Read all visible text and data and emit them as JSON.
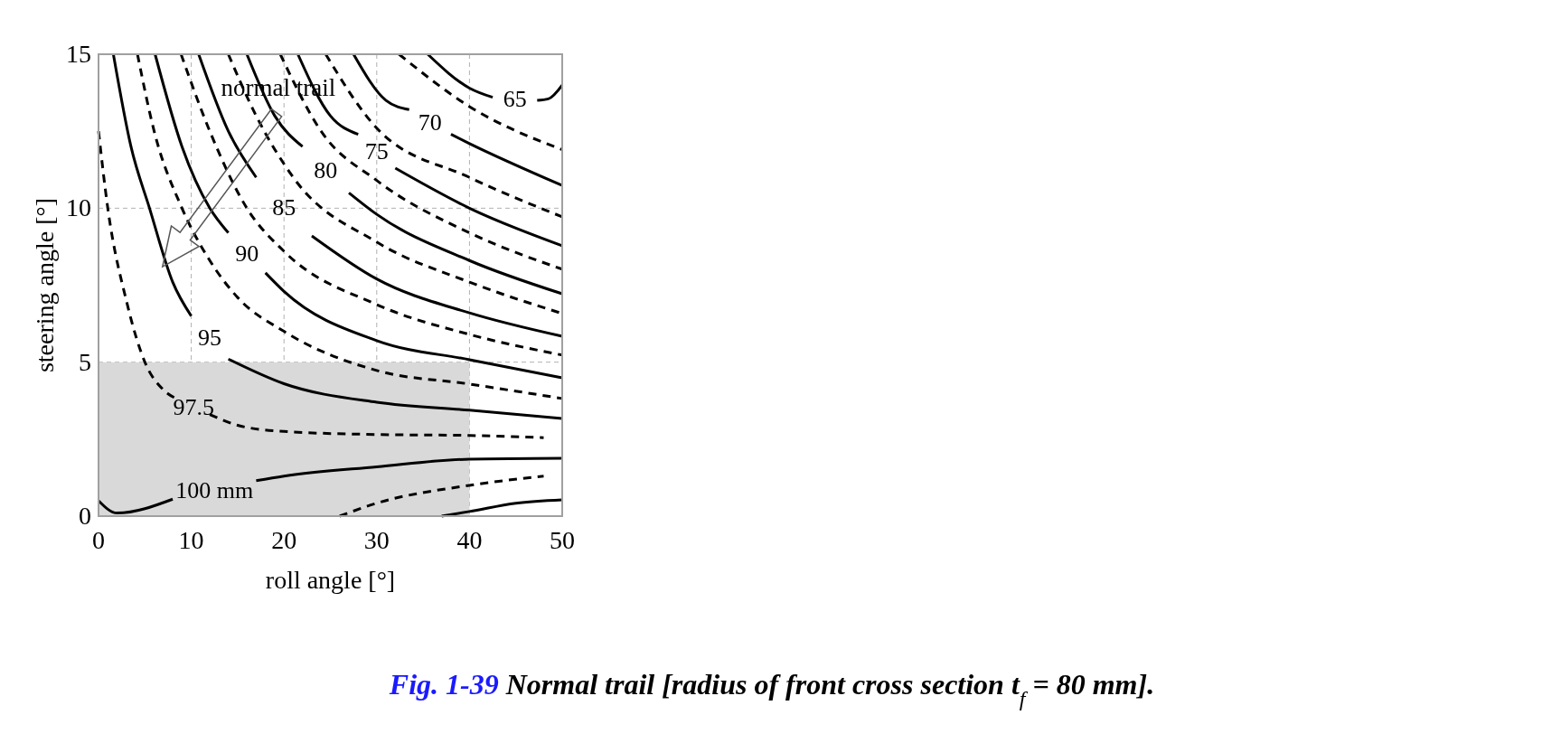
{
  "chart_data": {
    "type": "line",
    "xlabel": "roll angle [°]",
    "ylabel": "steering angle [°]",
    "xlim": [
      0,
      50
    ],
    "ylim": [
      0,
      15
    ],
    "xticks": [
      0,
      10,
      20,
      30,
      40,
      50
    ],
    "yticks": [
      0,
      5,
      10,
      15
    ],
    "grid": true,
    "series": [
      {
        "type": "area",
        "color": "#d9d9d9",
        "x": [
          0,
          40
        ],
        "values": [
          5,
          5
        ]
      },
      {
        "name": "100 mm",
        "color": "#000000",
        "line_style": "solid",
        "x": [
          0,
          2,
          8,
          12,
          17,
          20,
          30,
          40,
          50
        ],
        "values": [
          0.5,
          0.1,
          0.55,
          null,
          1.15,
          1.3,
          1.6,
          1.85,
          1.88
        ]
      },
      {
        "color": "#000000",
        "line_style": "dashed",
        "x": [
          26,
          30,
          40,
          48
        ],
        "values": [
          0,
          0.42,
          1.0,
          1.3
        ]
      },
      {
        "color": "#000000",
        "line_style": "solid",
        "x": [
          37,
          40,
          45,
          50
        ],
        "values": [
          0,
          0.15,
          0.42,
          0.53
        ]
      },
      {
        "name": "97.5",
        "color": "#000000",
        "line_style": "dashed",
        "x": [
          0,
          1,
          3,
          5,
          7,
          8.5,
          10.6,
          12,
          15,
          20,
          30,
          40,
          48
        ],
        "values": [
          12.5,
          10,
          7,
          5,
          4.1,
          3.8,
          null,
          3.3,
          2.95,
          2.75,
          2.65,
          2.62,
          2.55
        ]
      },
      {
        "name": "95",
        "color": "#000000",
        "line_style": "solid",
        "x": [
          1.6,
          3.5,
          5.5,
          8,
          10,
          12.5,
          14,
          20,
          30,
          40,
          50
        ],
        "values": [
          15,
          12,
          10,
          7.6,
          6.5,
          null,
          5.1,
          4.3,
          3.7,
          3.44,
          3.17
        ]
      },
      {
        "color": "#000000",
        "line_style": "dashed",
        "x": [
          4.2,
          6,
          9,
          12,
          15,
          20,
          30,
          40,
          50
        ],
        "values": [
          15,
          12.5,
          10,
          8.3,
          7.1,
          6,
          4.73,
          4.29,
          3.82
        ]
      },
      {
        "name": "90",
        "color": "#000000",
        "line_style": "solid",
        "x": [
          6.1,
          9,
          12,
          14,
          16,
          18,
          20,
          30,
          40,
          50
        ],
        "values": [
          15,
          12,
          10,
          9.2,
          null,
          7.9,
          7.3,
          5.7,
          5.08,
          4.49
        ]
      },
      {
        "color": "#000000",
        "line_style": "dashed",
        "x": [
          8.9,
          12,
          16,
          20,
          30,
          40,
          50
        ],
        "values": [
          15,
          12.5,
          10,
          8.6,
          6.87,
          5.9,
          5.23
        ]
      },
      {
        "name": "85",
        "color": "#000000",
        "line_style": "solid",
        "x": [
          10.8,
          14,
          17,
          20,
          23,
          30,
          40,
          50
        ],
        "values": [
          15,
          12.5,
          11,
          null,
          9.1,
          7.7,
          6.6,
          5.84
        ]
      },
      {
        "color": "#000000",
        "line_style": "dashed",
        "x": [
          14,
          17,
          21,
          30,
          40,
          50
        ],
        "values": [
          15,
          13,
          11,
          8.9,
          7.6,
          6.58
        ]
      },
      {
        "name": "80",
        "color": "#000000",
        "line_style": "solid",
        "x": [
          16,
          19,
          22,
          24.7,
          27,
          30,
          40,
          50
        ],
        "values": [
          15,
          13,
          12,
          null,
          10.5,
          9.8,
          8.3,
          7.22
        ]
      },
      {
        "color": "#000000",
        "line_style": "dashed",
        "x": [
          19.6,
          24,
          30,
          40,
          50
        ],
        "values": [
          15,
          12.5,
          10.9,
          9.2,
          8.02
        ]
      },
      {
        "name": "75",
        "color": "#000000",
        "line_style": "solid",
        "x": [
          21.5,
          25,
          28,
          30,
          32,
          40,
          50
        ],
        "values": [
          15,
          13,
          12.4,
          null,
          11.3,
          10,
          8.78
        ]
      },
      {
        "color": "#000000",
        "line_style": "dashed",
        "x": [
          24.5,
          30,
          40,
          50
        ],
        "values": [
          15,
          12.6,
          11,
          9.72
        ]
      },
      {
        "name": "70",
        "color": "#000000",
        "line_style": "solid",
        "x": [
          27.5,
          31,
          33.5,
          35.5,
          38,
          40,
          50
        ],
        "values": [
          15,
          13.5,
          13.2,
          null,
          12.4,
          12.1,
          10.74
        ]
      },
      {
        "color": "#000000",
        "line_style": "dashed",
        "x": [
          32.4,
          40,
          50
        ],
        "values": [
          15,
          13.3,
          11.9
        ]
      },
      {
        "name": "65",
        "color": "#000000",
        "line_style": "solid",
        "x": [
          35.5,
          40,
          42.5,
          44.8,
          47.3,
          48.5,
          50
        ],
        "values": [
          15,
          13.9,
          13.6,
          null,
          13.5,
          13.55,
          14
        ]
      }
    ],
    "annotations": [
      "normal trail",
      "Fig. 1-39 Normal trail [radius of front cross section t$_{f}$ = 80 mm]."
    ]
  }
}
